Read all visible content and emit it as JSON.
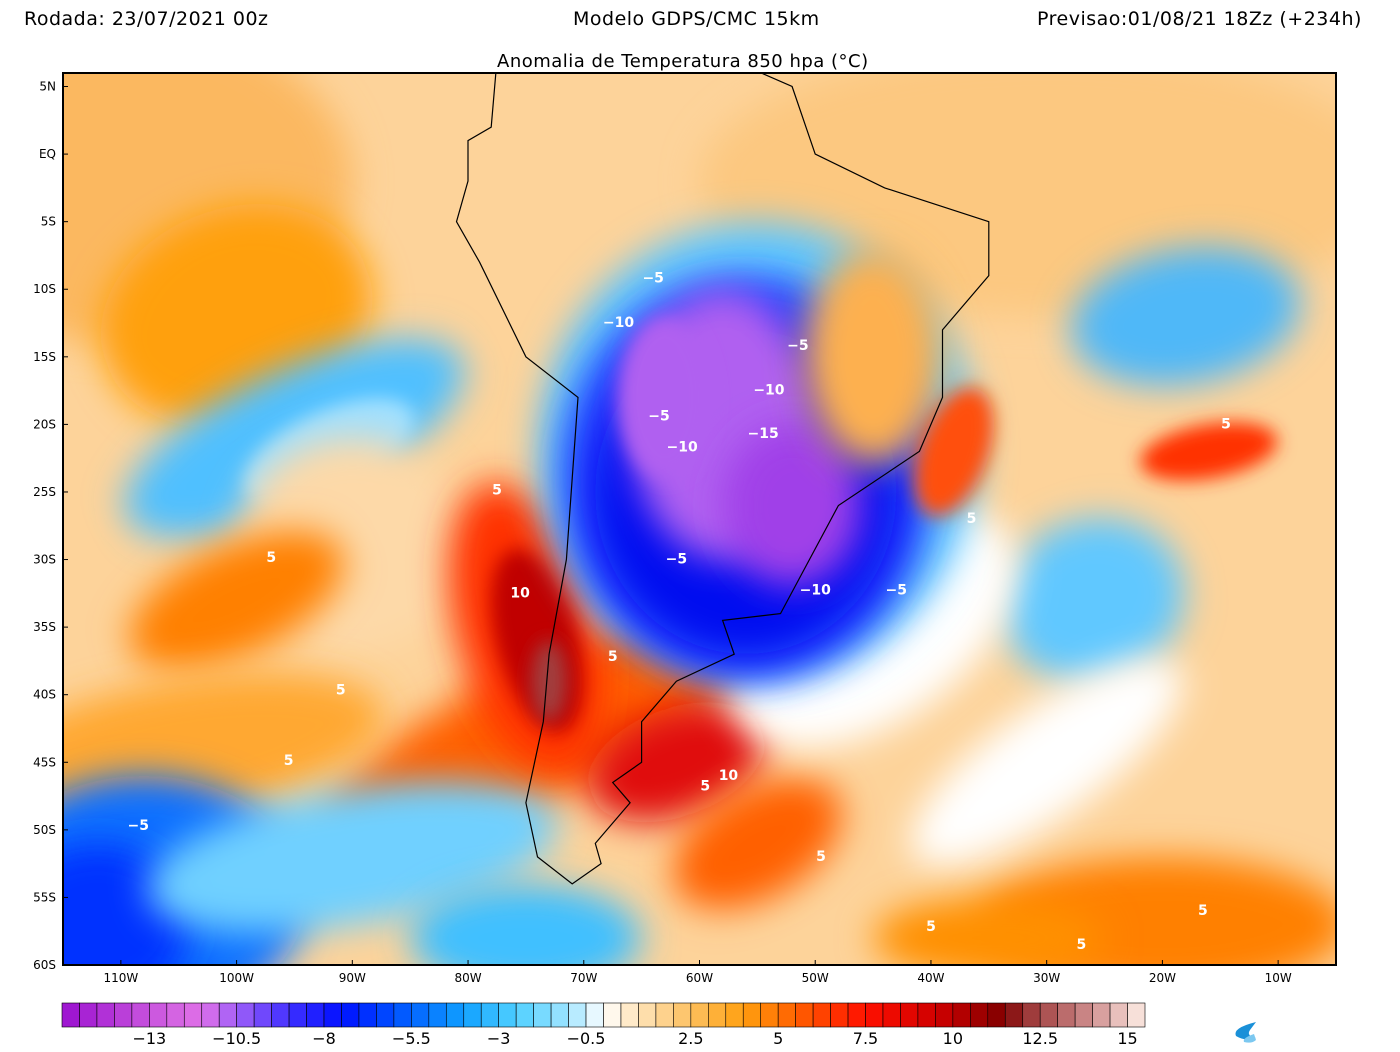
{
  "header": {
    "run": "Rodada: 23/07/2021 00z",
    "model": "Modelo GDPS/CMC 15km",
    "forecast": "Previsao:01/08/21 18Zz (+234h)",
    "title": "Anomalia de Temperatura 850 hpa (°C)"
  },
  "map": {
    "lon_range": [
      -115,
      -5
    ],
    "lat_range": [
      -60,
      6
    ],
    "lat_ticks": [
      {
        "v": 5,
        "label": "5N"
      },
      {
        "v": 0,
        "label": "EQ"
      },
      {
        "v": -5,
        "label": "5S"
      },
      {
        "v": -10,
        "label": "10S"
      },
      {
        "v": -15,
        "label": "15S"
      },
      {
        "v": -20,
        "label": "20S"
      },
      {
        "v": -25,
        "label": "25S"
      },
      {
        "v": -30,
        "label": "30S"
      },
      {
        "v": -35,
        "label": "35S"
      },
      {
        "v": -40,
        "label": "40S"
      },
      {
        "v": -45,
        "label": "45S"
      },
      {
        "v": -50,
        "label": "50S"
      },
      {
        "v": -55,
        "label": "55S"
      },
      {
        "v": -60,
        "label": "60S"
      }
    ],
    "lon_ticks": [
      {
        "v": -110,
        "label": "110W"
      },
      {
        "v": -100,
        "label": "100W"
      },
      {
        "v": -90,
        "label": "90W"
      },
      {
        "v": -80,
        "label": "80W"
      },
      {
        "v": -70,
        "label": "70W"
      },
      {
        "v": -60,
        "label": "60W"
      },
      {
        "v": -50,
        "label": "50W"
      },
      {
        "v": -40,
        "label": "40W"
      },
      {
        "v": -30,
        "label": "30W"
      },
      {
        "v": -20,
        "label": "20W"
      },
      {
        "v": -10,
        "label": "10W"
      }
    ],
    "contour_labels": [
      {
        "lon": -64,
        "lat": -9.5,
        "text": "−5"
      },
      {
        "lon": -67,
        "lat": -12.8,
        "text": "−10"
      },
      {
        "lon": -51.5,
        "lat": -14.5,
        "text": "−5"
      },
      {
        "lon": -54,
        "lat": -17.8,
        "text": "−10"
      },
      {
        "lon": -63.5,
        "lat": -19.7,
        "text": "−5"
      },
      {
        "lon": -61.5,
        "lat": -22,
        "text": "−10"
      },
      {
        "lon": -54.5,
        "lat": -21,
        "text": "−15"
      },
      {
        "lon": -62,
        "lat": -30.3,
        "text": "−5"
      },
      {
        "lon": -50,
        "lat": -32.6,
        "text": "−10"
      },
      {
        "lon": -43,
        "lat": -32.6,
        "text": "−5"
      },
      {
        "lon": -108.5,
        "lat": -50,
        "text": "−5"
      },
      {
        "lon": -77.5,
        "lat": -25.2,
        "text": "5"
      },
      {
        "lon": -97,
        "lat": -30.2,
        "text": "5"
      },
      {
        "lon": -75.5,
        "lat": -32.8,
        "text": "10"
      },
      {
        "lon": -67.5,
        "lat": -37.5,
        "text": "5"
      },
      {
        "lon": -91,
        "lat": -40,
        "text": "5"
      },
      {
        "lon": -95.5,
        "lat": -45.2,
        "text": "5"
      },
      {
        "lon": -57.5,
        "lat": -46.3,
        "text": "10"
      },
      {
        "lon": -59.5,
        "lat": -47.1,
        "text": "5"
      },
      {
        "lon": -36.5,
        "lat": -27.3,
        "text": "5"
      },
      {
        "lon": -49.5,
        "lat": -52.3,
        "text": "5"
      },
      {
        "lon": -14.5,
        "lat": -20.3,
        "text": "5"
      },
      {
        "lon": -40,
        "lat": -57.5,
        "text": "5"
      },
      {
        "lon": -16.5,
        "lat": -56.3,
        "text": "5"
      },
      {
        "lon": -27,
        "lat": -58.8,
        "text": "5"
      }
    ]
  },
  "colorbar": {
    "min": -15.5,
    "max": 15.5,
    "step": 0.5,
    "labels": [
      "−13",
      "−10.5",
      "−8",
      "−5.5",
      "−3",
      "−0.5",
      "2.5",
      "5",
      "7.5",
      "10",
      "12.5",
      "15"
    ],
    "label_values": [
      -13,
      -10.5,
      -8,
      -5.5,
      -3,
      -0.5,
      2.5,
      5,
      7.5,
      10,
      12.5,
      15
    ],
    "color_stops": [
      {
        "v": -15.5,
        "c": "#9a10d0"
      },
      {
        "v": -12.5,
        "c": "#d060e0"
      },
      {
        "v": -11.5,
        "c": "#e070e8"
      },
      {
        "v": -10.5,
        "c": "#a060f8"
      },
      {
        "v": -9,
        "c": "#4030ff"
      },
      {
        "v": -7.5,
        "c": "#0010ff"
      },
      {
        "v": -6,
        "c": "#0050ff"
      },
      {
        "v": -4,
        "c": "#10a0ff"
      },
      {
        "v": -2.5,
        "c": "#50d0ff"
      },
      {
        "v": -1,
        "c": "#a0e4ff"
      },
      {
        "v": 0,
        "c": "#ffffff"
      },
      {
        "v": 0.5,
        "c": "#fff0d8"
      },
      {
        "v": 2.5,
        "c": "#fdc060"
      },
      {
        "v": 4,
        "c": "#ffa010"
      },
      {
        "v": 5.5,
        "c": "#ff6000"
      },
      {
        "v": 7.5,
        "c": "#ff1000"
      },
      {
        "v": 9.5,
        "c": "#d00000"
      },
      {
        "v": 11.5,
        "c": "#800000"
      },
      {
        "v": 12,
        "c": "#983030"
      },
      {
        "v": 14,
        "c": "#d09090"
      },
      {
        "v": 15.5,
        "c": "#fff0e8"
      }
    ]
  }
}
